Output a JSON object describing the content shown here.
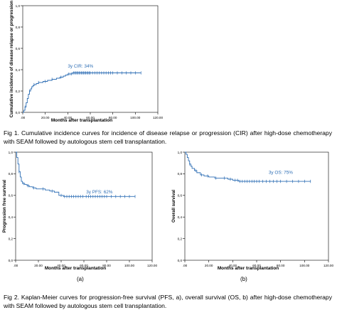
{
  "figure1": {
    "caption": "Fig 1. Cumulative incidence curves for incidence of disease relapse or progression (CIR) after high-dose chemotherapy with SEAM followed by autologous stem cell transplantation."
  },
  "figure2": {
    "caption": "Fig 2. Kaplan-Meier curves for progression-free survival (PFS, a), overall survival (OS, b) after high-dose chemotherapy with SEAM followed by autologous stem cell transplantation.",
    "label_a": "(a)",
    "label_b": "(b)"
  },
  "chart_data": [
    {
      "id": "cir",
      "type": "line",
      "ylabel": "Cumulative incidence of disease relapse or progression",
      "xlabel": "Months after transplantation",
      "annotation": "3y CIR: 34%",
      "annotation_at": [
        40,
        0.42
      ],
      "xlim": [
        0,
        120
      ],
      "ylim": [
        0,
        1.0
      ],
      "xticks": [
        0,
        20,
        40,
        60,
        80,
        100,
        120
      ],
      "xtick_labels": [
        ".00",
        "20.00",
        "40.00",
        "60.00",
        "80.00",
        "100.00",
        "120.00"
      ],
      "yticks": [
        0,
        0.2,
        0.4,
        0.6,
        0.8,
        1.0
      ],
      "ytick_labels": [
        "0,0",
        "0,2",
        "0,4",
        "0,6",
        "0,8",
        "1,0"
      ],
      "series": [
        {
          "x": [
            0,
            1,
            2,
            3,
            4,
            5,
            6,
            7,
            8,
            9,
            10,
            12,
            14,
            18,
            22,
            26,
            30,
            33,
            36,
            38,
            40,
            42,
            44,
            105
          ],
          "y": [
            0,
            0.02,
            0.05,
            0.09,
            0.13,
            0.17,
            0.2,
            0.22,
            0.24,
            0.25,
            0.26,
            0.27,
            0.28,
            0.29,
            0.3,
            0.31,
            0.32,
            0.33,
            0.34,
            0.35,
            0.36,
            0.36,
            0.37,
            0.37
          ],
          "censored": [
            2,
            6,
            10,
            14,
            20,
            26,
            34,
            41,
            43,
            45,
            46,
            47,
            48,
            49,
            50,
            51,
            52,
            53,
            54,
            55,
            56,
            57,
            58,
            59,
            60,
            62,
            64,
            66,
            68,
            70,
            72,
            74,
            76,
            78,
            80,
            84,
            88,
            92,
            96,
            100,
            105
          ]
        }
      ]
    },
    {
      "id": "pfs",
      "type": "line",
      "ylabel": "Progression free survival",
      "xlabel": "Months after transplantation",
      "annotation": "3y PFS: 62%",
      "annotation_at": [
        62,
        0.62
      ],
      "xlim": [
        0,
        120
      ],
      "ylim": [
        0,
        1.0
      ],
      "xticks": [
        0,
        20,
        40,
        60,
        80,
        100,
        120
      ],
      "xtick_labels": [
        ".00",
        "20.00",
        "40.00",
        "60.00",
        "80.00",
        "100.00",
        "120.00"
      ],
      "yticks": [
        0,
        0.2,
        0.4,
        0.6,
        0.8,
        1.0
      ],
      "ytick_labels": [
        "0,0",
        "0,2",
        "0,4",
        "0,6",
        "0,8",
        "1,0"
      ],
      "series": [
        {
          "x": [
            0,
            1,
            2,
            3,
            4,
            5,
            6,
            8,
            10,
            12,
            15,
            18,
            22,
            26,
            30,
            34,
            38,
            42,
            105
          ],
          "y": [
            1.0,
            0.95,
            0.89,
            0.82,
            0.77,
            0.73,
            0.71,
            0.7,
            0.69,
            0.68,
            0.67,
            0.66,
            0.66,
            0.65,
            0.64,
            0.63,
            0.6,
            0.59,
            0.59
          ],
          "censored": [
            3,
            7,
            11,
            16,
            24,
            32,
            40,
            43,
            45,
            47,
            49,
            51,
            53,
            55,
            57,
            59,
            62,
            64,
            66,
            68,
            70,
            72,
            74,
            76,
            78,
            80,
            84,
            88,
            92,
            96,
            100,
            105
          ]
        }
      ]
    },
    {
      "id": "os",
      "type": "line",
      "ylabel": "Overall survival",
      "xlabel": "Months after transplantation",
      "annotation": "3y OS: 75%",
      "annotation_at": [
        70,
        0.8
      ],
      "xlim": [
        0,
        120
      ],
      "ylim": [
        0,
        1.0
      ],
      "xticks": [
        0,
        20,
        40,
        60,
        80,
        100,
        120
      ],
      "xtick_labels": [
        ".00",
        "20.00",
        "40.00",
        "60.00",
        "80.00",
        "100.00",
        "120.00"
      ],
      "yticks": [
        0,
        0.2,
        0.4,
        0.6,
        0.8,
        1.0
      ],
      "ytick_labels": [
        "0,0",
        "0,2",
        "0,4",
        "0,6",
        "0,8",
        "1,0"
      ],
      "series": [
        {
          "x": [
            0,
            1,
            2,
            3,
            4,
            5,
            6,
            8,
            10,
            13,
            16,
            20,
            25,
            30,
            36,
            40,
            45,
            105
          ],
          "y": [
            1.0,
            0.98,
            0.95,
            0.92,
            0.89,
            0.87,
            0.85,
            0.83,
            0.81,
            0.79,
            0.78,
            0.77,
            0.76,
            0.76,
            0.75,
            0.74,
            0.73,
            0.73
          ],
          "censored": [
            4,
            9,
            14,
            19,
            26,
            33,
            38,
            42,
            44,
            46,
            48,
            50,
            52,
            54,
            56,
            58,
            60,
            62,
            65,
            68,
            71,
            74,
            77,
            80,
            85,
            90,
            95,
            100,
            105
          ]
        }
      ]
    }
  ]
}
